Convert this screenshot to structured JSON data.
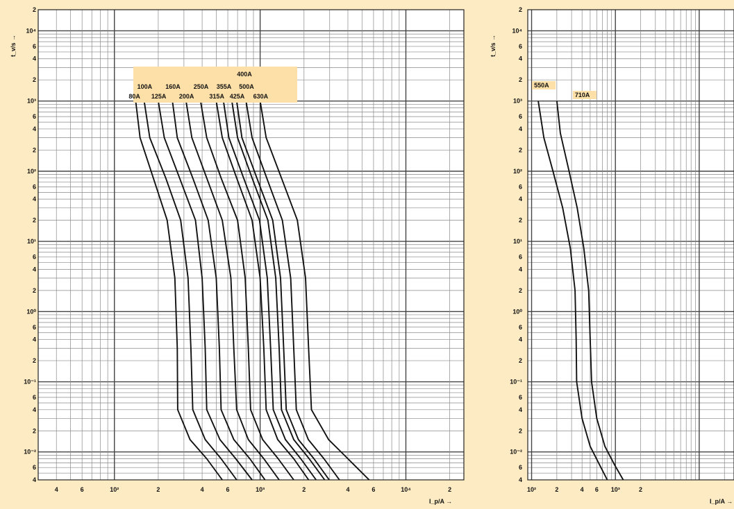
{
  "chart_data": [
    {
      "type": "line",
      "title": "",
      "xscale": "log",
      "yscale": "log",
      "xlim": [
        30,
        25000
      ],
      "ylim": [
        0.004,
        20000
      ],
      "xlabel": "I_p/A →",
      "ylabel": "t_v/s →",
      "grid": true,
      "x_tick_labels": [
        "4",
        "6",
        "10²",
        "2",
        "4",
        "6",
        "10³",
        "2",
        "4",
        "6",
        "10⁴",
        "2"
      ],
      "y_tick_labels": [
        "2",
        "10⁴",
        "6",
        "4",
        "2",
        "10³",
        "6",
        "4",
        "2",
        "10²",
        "6",
        "4",
        "2",
        "10¹",
        "6",
        "4",
        "2",
        "10⁰",
        "6",
        "4",
        "2",
        "10⁻¹",
        "6",
        "4",
        "2",
        "10⁻²",
        "6",
        "4"
      ],
      "legend_box_label": "400A",
      "series": [
        {
          "name": "80A",
          "label_row": 3,
          "points": [
            [
              140,
              1000
            ],
            [
              150,
              300
            ],
            [
              185,
              80
            ],
            [
              230,
              20
            ],
            [
              260,
              3
            ],
            [
              270,
              0.3
            ],
            [
              272,
              0.04
            ],
            [
              330,
              0.015
            ],
            [
              430,
              0.008
            ],
            [
              550,
              0.004
            ]
          ]
        },
        {
          "name": "100A",
          "label_row": 2,
          "points": [
            [
              160,
              1000
            ],
            [
              175,
              300
            ],
            [
              225,
              80
            ],
            [
              285,
              20
            ],
            [
              320,
              3
            ],
            [
              335,
              0.3
            ],
            [
              345,
              0.04
            ],
            [
              420,
              0.015
            ],
            [
              540,
              0.008
            ],
            [
              690,
              0.004
            ]
          ]
        },
        {
          "name": "125A",
          "label_row": 3,
          "points": [
            [
              200,
              1000
            ],
            [
              220,
              300
            ],
            [
              280,
              80
            ],
            [
              360,
              20
            ],
            [
              400,
              3
            ],
            [
              420,
              0.3
            ],
            [
              430,
              0.04
            ],
            [
              530,
              0.015
            ],
            [
              680,
              0.008
            ],
            [
              880,
              0.004
            ]
          ]
        },
        {
          "name": "160A",
          "label_row": 2,
          "points": [
            [
              250,
              1000
            ],
            [
              270,
              300
            ],
            [
              345,
              80
            ],
            [
              440,
              20
            ],
            [
              500,
              3
            ],
            [
              525,
              0.3
            ],
            [
              540,
              0.04
            ],
            [
              660,
              0.015
            ],
            [
              850,
              0.008
            ],
            [
              1080,
              0.004
            ]
          ]
        },
        {
          "name": "200A",
          "label_row": 3,
          "points": [
            [
              310,
              1000
            ],
            [
              340,
              300
            ],
            [
              430,
              80
            ],
            [
              550,
              20
            ],
            [
              630,
              3
            ],
            [
              660,
              0.3
            ],
            [
              690,
              0.04
            ],
            [
              830,
              0.015
            ],
            [
              1060,
              0.008
            ],
            [
              1350,
              0.004
            ]
          ]
        },
        {
          "name": "250A",
          "label_row": 2,
          "points": [
            [
              390,
              1000
            ],
            [
              430,
              300
            ],
            [
              540,
              80
            ],
            [
              700,
              20
            ],
            [
              790,
              3
            ],
            [
              830,
              0.3
            ],
            [
              860,
              0.04
            ],
            [
              1040,
              0.015
            ],
            [
              1330,
              0.008
            ],
            [
              1700,
              0.004
            ]
          ]
        },
        {
          "name": "315A",
          "label_row": 3,
          "points": [
            [
              500,
              1000
            ],
            [
              550,
              300
            ],
            [
              690,
              80
            ],
            [
              880,
              20
            ],
            [
              1000,
              3
            ],
            [
              1060,
              0.3
            ],
            [
              1100,
              0.04
            ],
            [
              1320,
              0.015
            ],
            [
              1700,
              0.008
            ],
            [
              2150,
              0.004
            ]
          ]
        },
        {
          "name": "355A",
          "label_row": 2,
          "points": [
            [
              560,
              1000
            ],
            [
              610,
              300
            ],
            [
              770,
              80
            ],
            [
              990,
              20
            ],
            [
              1120,
              3
            ],
            [
              1180,
              0.3
            ],
            [
              1230,
              0.04
            ],
            [
              1490,
              0.015
            ],
            [
              1900,
              0.008
            ],
            [
              2420,
              0.004
            ]
          ]
        },
        {
          "name": "400A",
          "label_row": 1,
          "points": [
            [
              640,
              1000
            ],
            [
              700,
              300
            ],
            [
              880,
              80
            ],
            [
              1130,
              20
            ],
            [
              1280,
              3
            ],
            [
              1350,
              0.3
            ],
            [
              1400,
              0.04
            ],
            [
              1700,
              0.015
            ],
            [
              2170,
              0.008
            ],
            [
              2770,
              0.004
            ]
          ]
        },
        {
          "name": "425A",
          "label_row": 3,
          "points": [
            [
              690,
              1000
            ],
            [
              750,
              300
            ],
            [
              950,
              80
            ],
            [
              1220,
              20
            ],
            [
              1380,
              3
            ],
            [
              1450,
              0.3
            ],
            [
              1510,
              0.04
            ],
            [
              1830,
              0.015
            ],
            [
              2340,
              0.008
            ],
            [
              2980,
              0.004
            ]
          ]
        },
        {
          "name": "500A",
          "label_row": 2,
          "points": [
            [
              800,
              1000
            ],
            [
              880,
              300
            ],
            [
              1110,
              80
            ],
            [
              1420,
              20
            ],
            [
              1620,
              3
            ],
            [
              1700,
              0.3
            ],
            [
              1770,
              0.04
            ],
            [
              2140,
              0.015
            ],
            [
              2740,
              0.008
            ],
            [
              3500,
              0.004
            ]
          ]
        },
        {
          "name": "630A",
          "label_row": 3,
          "points": [
            [
              1000,
              1000
            ],
            [
              1100,
              300
            ],
            [
              1400,
              80
            ],
            [
              1800,
              20
            ],
            [
              2050,
              3
            ],
            [
              2150,
              0.3
            ],
            [
              2250,
              0.04
            ],
            [
              2950,
              0.015
            ],
            [
              4000,
              0.008
            ],
            [
              5600,
              0.004
            ]
          ]
        }
      ]
    },
    {
      "type": "line",
      "title": "",
      "xscale": "log",
      "yscale": "log",
      "xlim": [
        90,
        26000
      ],
      "ylim": [
        0.004,
        20000
      ],
      "xlabel": "I_p/A →",
      "ylabel": "t_v/s →",
      "grid": true,
      "x_tick_labels": [
        "10²",
        "2",
        "4",
        "6",
        "10³",
        "2"
      ],
      "y_tick_labels": [
        "2",
        "10⁴",
        "6",
        "4",
        "2",
        "10³",
        "6",
        "4",
        "2",
        "10²",
        "6",
        "4",
        "2",
        "10¹",
        "6",
        "4",
        "2",
        "10⁰",
        "6",
        "4",
        "2",
        "10⁻¹",
        "6",
        "4",
        "2",
        "10⁻²",
        "6",
        "4"
      ],
      "series": [
        {
          "name": "550A",
          "points": [
            [
              120,
              1000
            ],
            [
              140,
              300
            ],
            [
              180,
              100
            ],
            [
              235,
              30
            ],
            [
              290,
              8
            ],
            [
              330,
              2
            ],
            [
              340,
              0.4
            ],
            [
              345,
              0.1
            ],
            [
              400,
              0.03
            ],
            [
              500,
              0.012
            ],
            [
              650,
              0.0065
            ],
            [
              800,
              0.004
            ]
          ]
        },
        {
          "name": "710A",
          "points": [
            [
              200,
              1000
            ],
            [
              220,
              350
            ],
            [
              280,
              100
            ],
            [
              350,
              30
            ],
            [
              420,
              8
            ],
            [
              480,
              2
            ],
            [
              500,
              0.4
            ],
            [
              520,
              0.1
            ],
            [
              600,
              0.03
            ],
            [
              750,
              0.012
            ],
            [
              980,
              0.0065
            ],
            [
              1240,
              0.004
            ]
          ]
        }
      ]
    }
  ]
}
